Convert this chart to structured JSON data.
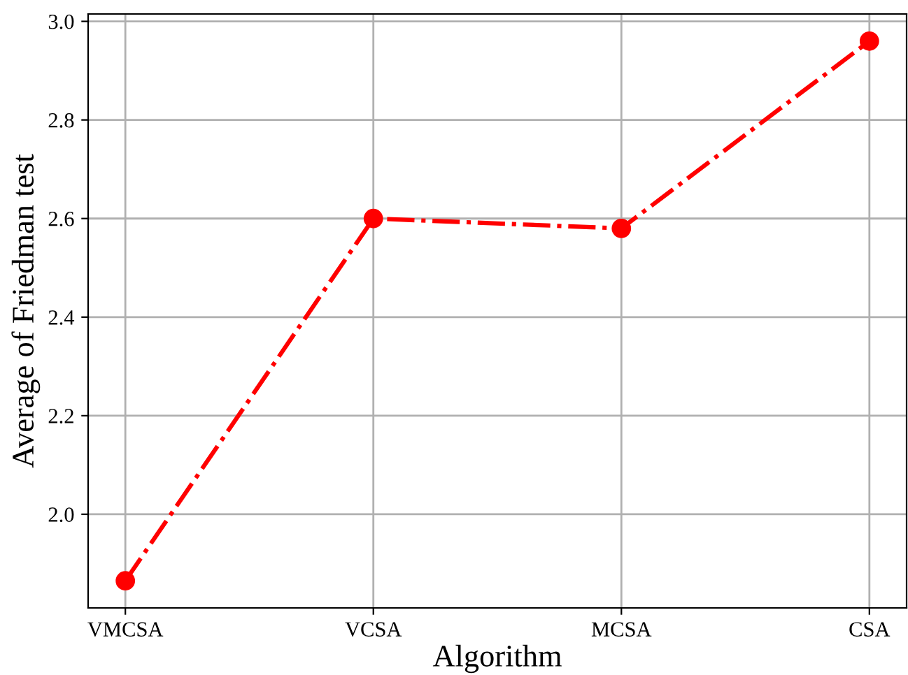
{
  "chart_data": {
    "type": "line",
    "xlabel": "Algorithm",
    "ylabel": "Average of Friedman test",
    "categories": [
      "VMCSA",
      "VCSA",
      "MCSA",
      "CSA"
    ],
    "series": [
      {
        "color": "#ff0000",
        "values": [
          1.865,
          2.6,
          2.58,
          2.96
        ]
      }
    ],
    "ylim": [
      1.81,
      3.015
    ],
    "yticks": [
      {
        "value": 2,
        "label": "2.0"
      },
      2.2,
      2.4,
      2.6,
      2.8,
      {
        "value": 3,
        "label": "3.0"
      }
    ],
    "grid": true,
    "marker": "circle",
    "line_style": "dashdot"
  }
}
